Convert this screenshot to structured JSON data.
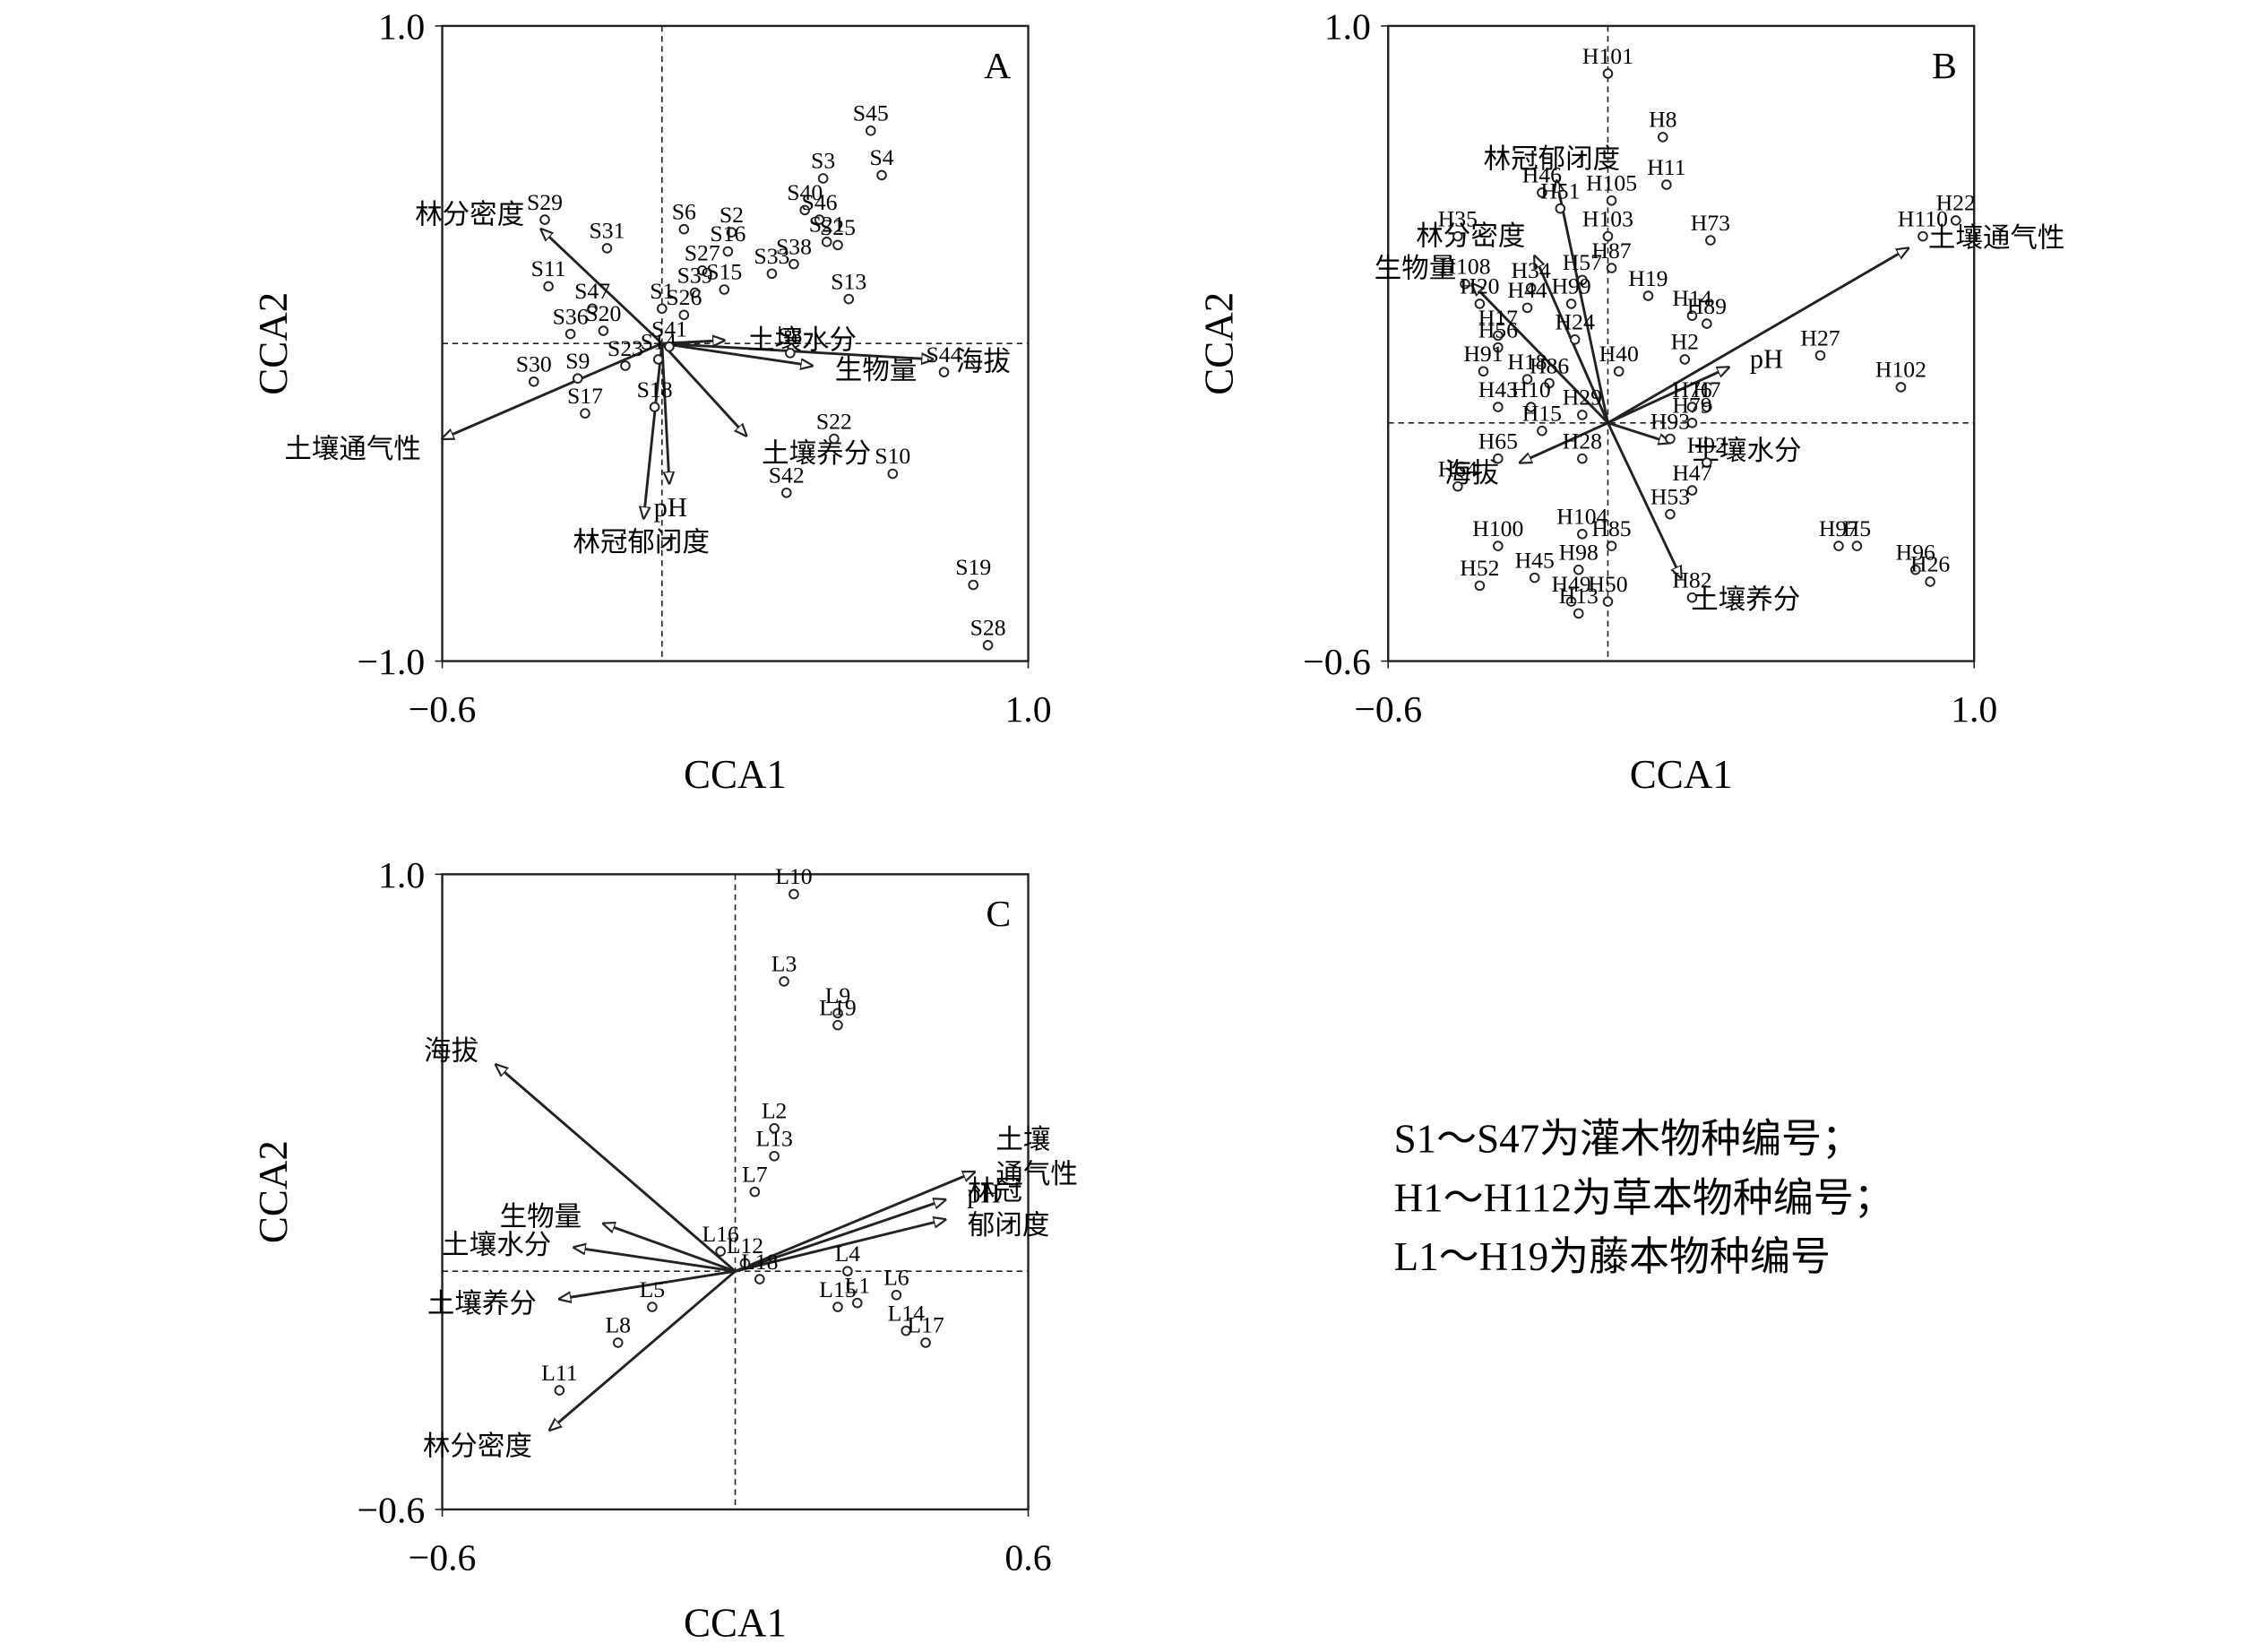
{
  "chart_data": [
    {
      "type": "biplot",
      "panel_label": "A",
      "xlabel": "CCA1",
      "ylabel": "CCA2",
      "xlim": [
        -0.6,
        1.0
      ],
      "ylim": [
        -1.0,
        1.0
      ],
      "xticks": [
        {
          "value": -0.6,
          "label": "−0.6"
        },
        {
          "value": 1.0,
          "label": "1.0"
        }
      ],
      "yticks": [
        {
          "value": -1.0,
          "label": "−1.0"
        },
        {
          "value": 1.0,
          "label": "1.0"
        }
      ],
      "points": {
        "labels": [
          "S45",
          "S4",
          "S3",
          "S40",
          "S46",
          "S21",
          "S25",
          "S6",
          "S2",
          "S16",
          "S38",
          "S27",
          "S33",
          "S13",
          "S15",
          "S39",
          "S1",
          "S26",
          "S31",
          "S29",
          "S11",
          "S47",
          "S36",
          "S20",
          "S30",
          "S9",
          "S23",
          "S17",
          "S18",
          "S14",
          "S41",
          "S8",
          "S44",
          "S22",
          "S10",
          "S42",
          "S19",
          "S28"
        ],
        "x": [
          0.57,
          0.6,
          0.44,
          0.39,
          0.43,
          0.45,
          0.48,
          0.06,
          0.19,
          0.18,
          0.36,
          0.11,
          0.3,
          0.51,
          0.17,
          0.09,
          0.0,
          0.06,
          -0.15,
          -0.32,
          -0.31,
          -0.19,
          -0.25,
          -0.16,
          -0.35,
          -0.23,
          -0.1,
          -0.21,
          -0.02,
          -0.01,
          0.02,
          0.35,
          0.77,
          0.47,
          0.63,
          0.34,
          0.85,
          0.89
        ],
        "y": [
          0.67,
          0.53,
          0.52,
          0.42,
          0.39,
          0.32,
          0.31,
          0.36,
          0.35,
          0.29,
          0.25,
          0.23,
          0.22,
          0.14,
          0.17,
          0.16,
          0.11,
          0.09,
          0.3,
          0.39,
          0.18,
          0.11,
          0.03,
          0.04,
          -0.12,
          -0.11,
          -0.07,
          -0.22,
          -0.2,
          -0.05,
          -0.01,
          -0.03,
          -0.09,
          -0.3,
          -0.41,
          -0.47,
          -0.76,
          -0.95
        ]
      },
      "vectors": {
        "labels": [
          "林分密度",
          "土壤通气性",
          "林冠郁闭度",
          "pH",
          "土壤养分",
          "生物量",
          "海拔",
          "土壤水分"
        ],
        "x": [
          -0.33,
          -0.6,
          -0.05,
          0.02,
          0.23,
          0.41,
          0.74,
          0.17
        ],
        "y": [
          0.36,
          -0.3,
          -0.55,
          -0.44,
          -0.29,
          -0.07,
          -0.05,
          0.01
        ]
      }
    },
    {
      "type": "biplot",
      "panel_label": "B",
      "xlabel": "CCA1",
      "ylabel": "CCA2",
      "xlim": [
        -0.6,
        1.0
      ],
      "ylim": [
        -0.6,
        1.0
      ],
      "xticks": [
        {
          "value": -0.6,
          "label": "−0.6"
        },
        {
          "value": 1.0,
          "label": "1.0"
        }
      ],
      "yticks": [
        {
          "value": -0.6,
          "label": "−0.6"
        },
        {
          "value": 1.0,
          "label": "1.0"
        }
      ],
      "points": {
        "labels": [
          "H101",
          "H8",
          "H11",
          "H105",
          "H46",
          "H51",
          "H35",
          "H22",
          "H110",
          "H73",
          "H103",
          "H87",
          "H108",
          "H34",
          "H57",
          "H19",
          "H20",
          "H44",
          "H99",
          "H14",
          "H89",
          "H17",
          "H24",
          "H56",
          "H91",
          "H18",
          "H86",
          "H40",
          "H2",
          "H27",
          "H102",
          "H43",
          "H10",
          "H29",
          "H76",
          "H7",
          "H79",
          "H15",
          "H93",
          "H28",
          "H65",
          "H92",
          "H47",
          "H64",
          "H53",
          "H85",
          "H104",
          "H100",
          "H97",
          "H5",
          "H96",
          "H26",
          "H52",
          "H45",
          "H98",
          "H49",
          "H13",
          "H50",
          "H82"
        ],
        "x": [
          0.0,
          0.15,
          0.16,
          0.01,
          -0.18,
          -0.13,
          -0.41,
          0.95,
          0.86,
          0.28,
          0.0,
          0.01,
          -0.39,
          -0.21,
          -0.07,
          0.11,
          -0.35,
          -0.22,
          -0.1,
          0.23,
          0.27,
          -0.3,
          -0.09,
          -0.3,
          -0.34,
          -0.22,
          -0.16,
          0.03,
          0.21,
          0.58,
          0.8,
          -0.3,
          -0.21,
          -0.07,
          0.23,
          0.27,
          0.23,
          -0.18,
          0.17,
          -0.07,
          -0.3,
          0.27,
          0.23,
          -0.41,
          0.17,
          0.01,
          -0.07,
          -0.3,
          0.63,
          0.68,
          0.84,
          0.88,
          -0.35,
          -0.2,
          -0.08,
          -0.1,
          -0.08,
          0.0,
          0.23
        ],
        "y": [
          0.88,
          0.72,
          0.6,
          0.56,
          0.58,
          0.54,
          0.47,
          0.51,
          0.47,
          0.46,
          0.47,
          0.39,
          0.35,
          0.34,
          0.36,
          0.32,
          0.3,
          0.29,
          0.3,
          0.27,
          0.25,
          0.22,
          0.21,
          0.19,
          0.13,
          0.11,
          0.1,
          0.13,
          0.16,
          0.17,
          0.09,
          0.04,
          0.04,
          0.02,
          0.04,
          0.04,
          0.0,
          -0.02,
          -0.04,
          -0.09,
          -0.09,
          -0.1,
          -0.17,
          -0.16,
          -0.23,
          -0.31,
          -0.28,
          -0.31,
          -0.31,
          -0.31,
          -0.37,
          -0.4,
          -0.41,
          -0.39,
          -0.37,
          -0.45,
          -0.48,
          -0.45,
          -0.44
        ]
      },
      "vectors": {
        "labels": [
          "林冠郁闭度",
          "林分密度",
          "生物量",
          "土壤通气性",
          "pH",
          "土壤水分",
          "海拔",
          "土壤养分"
        ],
        "x": [
          -0.14,
          -0.2,
          -0.37,
          0.82,
          0.33,
          0.17,
          -0.24,
          0.2
        ],
        "y": [
          0.61,
          0.42,
          0.35,
          0.44,
          0.14,
          -0.05,
          -0.1,
          -0.39
        ]
      }
    },
    {
      "type": "biplot",
      "panel_label": "C",
      "xlabel": "CCA1",
      "ylabel": "CCA2",
      "xlim": [
        -0.6,
        0.6
      ],
      "ylim": [
        -0.6,
        1.0
      ],
      "xticks": [
        {
          "value": -0.6,
          "label": "−0.6"
        },
        {
          "value": 0.6,
          "label": "0.6"
        }
      ],
      "yticks": [
        {
          "value": -0.6,
          "label": "−0.6"
        },
        {
          "value": 1.0,
          "label": "1.0"
        }
      ],
      "points": {
        "labels": [
          "L10",
          "L3",
          "L9",
          "L19",
          "L2",
          "L13",
          "L7",
          "L16",
          "L12",
          "L18",
          "L4",
          "L15",
          "L1",
          "L6",
          "L14",
          "L17",
          "L5",
          "L8",
          "L11"
        ],
        "x": [
          0.12,
          0.1,
          0.21,
          0.21,
          0.08,
          0.08,
          0.04,
          -0.03,
          0.02,
          0.05,
          0.23,
          0.21,
          0.25,
          0.33,
          0.35,
          0.39,
          -0.17,
          -0.24,
          -0.36
        ],
        "y": [
          0.95,
          0.73,
          0.65,
          0.62,
          0.36,
          0.29,
          0.2,
          0.05,
          0.02,
          -0.02,
          0.0,
          -0.09,
          -0.08,
          -0.06,
          -0.15,
          -0.18,
          -0.09,
          -0.18,
          -0.3
        ]
      },
      "vectors": {
        "labels": [
          "海拔",
          "生物量",
          "土壤水分",
          "土壤养分",
          "林分密度",
          [
            "土壤",
            "通气性"
          ],
          "pH",
          [
            "林冠",
            "郁闭度"
          ]
        ],
        "x": [
          -0.49,
          -0.27,
          -0.33,
          -0.36,
          -0.38,
          0.49,
          0.43,
          0.43
        ],
        "y": [
          0.52,
          0.12,
          0.06,
          -0.07,
          -0.4,
          0.25,
          0.18,
          0.13
        ]
      }
    }
  ],
  "note": [
    "S1～S47为灌木物种编号；",
    "H1～H112为草本物种编号；",
    "L1～H19为藤本物种编号"
  ]
}
